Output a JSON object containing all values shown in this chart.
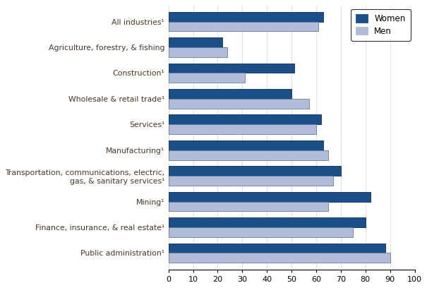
{
  "categories": [
    "Public administration¹",
    "Finance, insurance, & real estate¹",
    "Mining¹",
    "Transportation, communications, electric,\ngas, & sanitary services¹",
    "Manufacturing¹",
    "Services¹",
    "Wholesale & retail trade¹",
    "Construction¹",
    "Agriculture, forestry, & fishing",
    "All industries¹"
  ],
  "women_values": [
    88,
    80,
    82,
    70,
    63,
    62,
    50,
    51,
    22,
    63
  ],
  "men_values": [
    90,
    75,
    65,
    67,
    65,
    60,
    57,
    31,
    24,
    61
  ],
  "women_color": "#1a4f8a",
  "men_color": "#b0bcd8",
  "xlim": [
    0,
    100
  ],
  "xticks": [
    0,
    10,
    20,
    30,
    40,
    50,
    60,
    70,
    80,
    90,
    100
  ],
  "bar_height": 0.38,
  "legend_labels": [
    "Women",
    "Men"
  ],
  "label_color": "#4a3728",
  "label_fontsize": 7.8
}
